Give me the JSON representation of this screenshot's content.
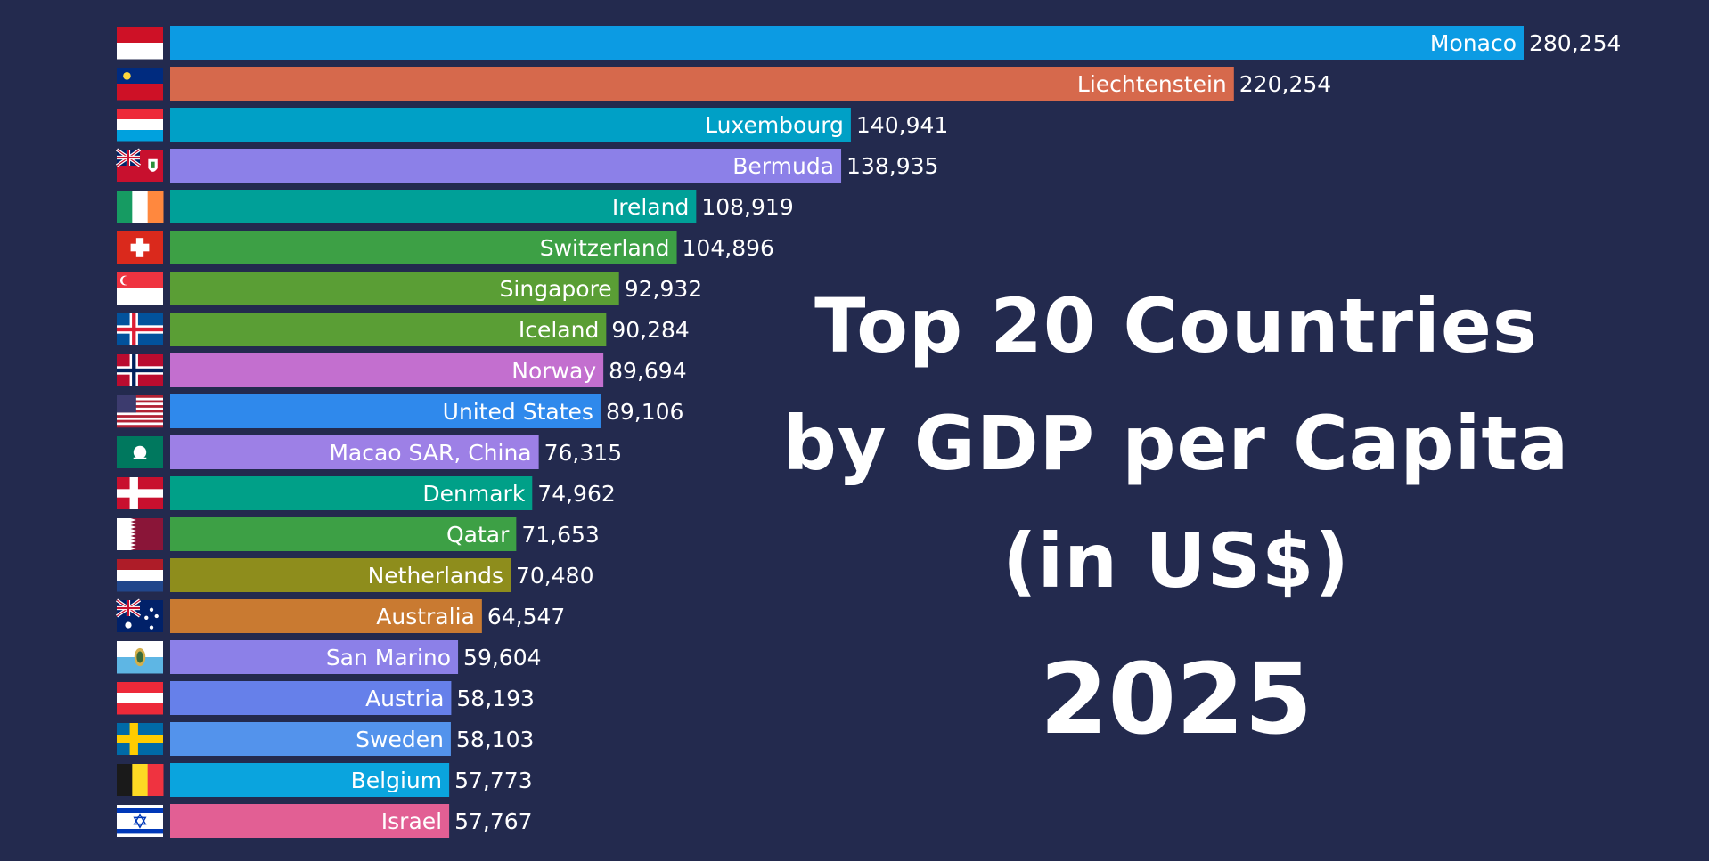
{
  "chart_data": {
    "type": "bar",
    "orientation": "horizontal",
    "categories": [
      "Monaco",
      "Liechtenstein",
      "Luxembourg",
      "Bermuda",
      "Ireland",
      "Switzerland",
      "Singapore",
      "Iceland",
      "Norway",
      "United States",
      "Macao SAR, China",
      "Denmark",
      "Qatar",
      "Netherlands",
      "Australia",
      "San Marino",
      "Austria",
      "Sweden",
      "Belgium",
      "Israel"
    ],
    "values": [
      280254,
      220254,
      140941,
      138935,
      108919,
      104896,
      92932,
      90284,
      89694,
      89106,
      76315,
      74962,
      71653,
      70480,
      64547,
      59604,
      58193,
      58103,
      57773,
      57767
    ],
    "value_labels": [
      "280,254",
      "220,254",
      "140,941",
      "138,935",
      "108,919",
      "104,896",
      "92,932",
      "90,284",
      "89,694",
      "89,106",
      "76,315",
      "74,962",
      "71,653",
      "70,480",
      "64,547",
      "59,604",
      "58,193",
      "58,103",
      "57,773",
      "57,767"
    ],
    "bar_colors": [
      "#0c9be3",
      "#d6694c",
      "#00a0c6",
      "#8c80e8",
      "#00a098",
      "#3da045",
      "#5a9e35",
      "#5a9e35",
      "#c36fcf",
      "#2f89ec",
      "#9d80e6",
      "#00a088",
      "#3da045",
      "#8e8d1c",
      "#c97a31",
      "#8c80e8",
      "#6680ea",
      "#5393ec",
      "#0aa4de",
      "#e25f94"
    ],
    "flags": [
      "monaco-flag",
      "liechtenstein-flag",
      "luxembourg-flag",
      "bermuda-flag",
      "ireland-flag",
      "switzerland-flag",
      "singapore-flag",
      "iceland-flag",
      "norway-flag",
      "united-states-flag",
      "macao-flag",
      "denmark-flag",
      "qatar-flag",
      "netherlands-flag",
      "australia-flag",
      "san-marino-flag",
      "austria-flag",
      "sweden-flag",
      "belgium-flag",
      "israel-flag"
    ],
    "xlim": [
      0,
      280254
    ],
    "grid": false,
    "legend": "none",
    "title": "Top 20 Countries by GDP per Capita (in US$)"
  },
  "title": {
    "line1": "Top 20 Countries",
    "line2": "by GDP per Capita",
    "line3": "(in US$)"
  },
  "year": "2025",
  "colors": {
    "background": "#232a4e",
    "text": "#ffffff"
  }
}
